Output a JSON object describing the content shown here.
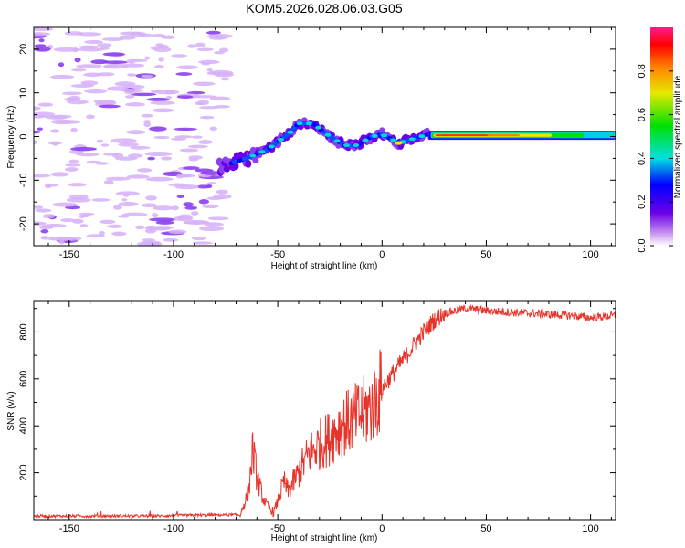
{
  "title": "KOM5.2026.028.06.03.G05",
  "colors": {
    "snr_line": "#e8332b",
    "background": "#ffffff",
    "axis": "#000000"
  },
  "chart_data": [
    {
      "type": "heatmap",
      "name": "spectrogram",
      "xlabel": "Height of straight line (km)",
      "ylabel": "Frequency (Hz)",
      "xlim": [
        -167,
        112
      ],
      "ylim": [
        -25,
        25
      ],
      "x_ticks": [
        -150,
        -100,
        -50,
        0,
        50,
        100
      ],
      "y_ticks": [
        -20,
        -10,
        0,
        10,
        20
      ],
      "colorbar": {
        "label": "Normalized spectral amplitude",
        "range": [
          0,
          1
        ],
        "ticks": [
          0.0,
          0.2,
          0.4,
          0.6,
          0.8
        ]
      },
      "signal_track": {
        "description_points": [
          {
            "x": -78,
            "y": -7
          },
          {
            "x": -65,
            "y": -5
          },
          {
            "x": -55,
            "y": -3
          },
          {
            "x": -45,
            "y": 0.5
          },
          {
            "x": -40,
            "y": 3
          },
          {
            "x": -33,
            "y": 3
          },
          {
            "x": -25,
            "y": 0
          },
          {
            "x": -18,
            "y": -2
          },
          {
            "x": -12,
            "y": -2
          },
          {
            "x": -5,
            "y": 0
          },
          {
            "x": 0,
            "y": 0.5
          },
          {
            "x": 8,
            "y": -1.5
          },
          {
            "x": 15,
            "y": -0.5
          },
          {
            "x": 22,
            "y": 0.5
          },
          {
            "x": 40,
            "y": 0.3
          },
          {
            "x": 112,
            "y": 0
          }
        ],
        "noise_region_x": [
          -167,
          -75
        ]
      }
    },
    {
      "type": "line",
      "name": "snr",
      "xlabel": "Height of straight line (km)",
      "ylabel": "SNR (v/v)",
      "xlim": [
        -167,
        112
      ],
      "ylim": [
        0,
        930
      ],
      "x_ticks": [
        -150,
        -100,
        -50,
        0,
        50,
        100
      ],
      "y_ticks": [
        200,
        400,
        600,
        800
      ],
      "series": [
        {
          "name": "SNR",
          "x": [
            -167,
            -140,
            -110,
            -80,
            -68,
            -64,
            -62,
            -60,
            -57,
            -55,
            -52,
            -50,
            -47,
            -45,
            -40,
            -35,
            -30,
            -25,
            -20,
            -15,
            -10,
            -5,
            0,
            5,
            10,
            15,
            20,
            25,
            30,
            35,
            40,
            50,
            60,
            70,
            80,
            90,
            100,
            112
          ],
          "y": [
            15,
            15,
            15,
            20,
            20,
            120,
            300,
            180,
            90,
            60,
            30,
            80,
            160,
            120,
            200,
            280,
            320,
            350,
            400,
            420,
            450,
            480,
            560,
            620,
            680,
            740,
            800,
            850,
            880,
            890,
            900,
            890,
            885,
            880,
            875,
            870,
            860,
            870
          ]
        }
      ]
    }
  ]
}
